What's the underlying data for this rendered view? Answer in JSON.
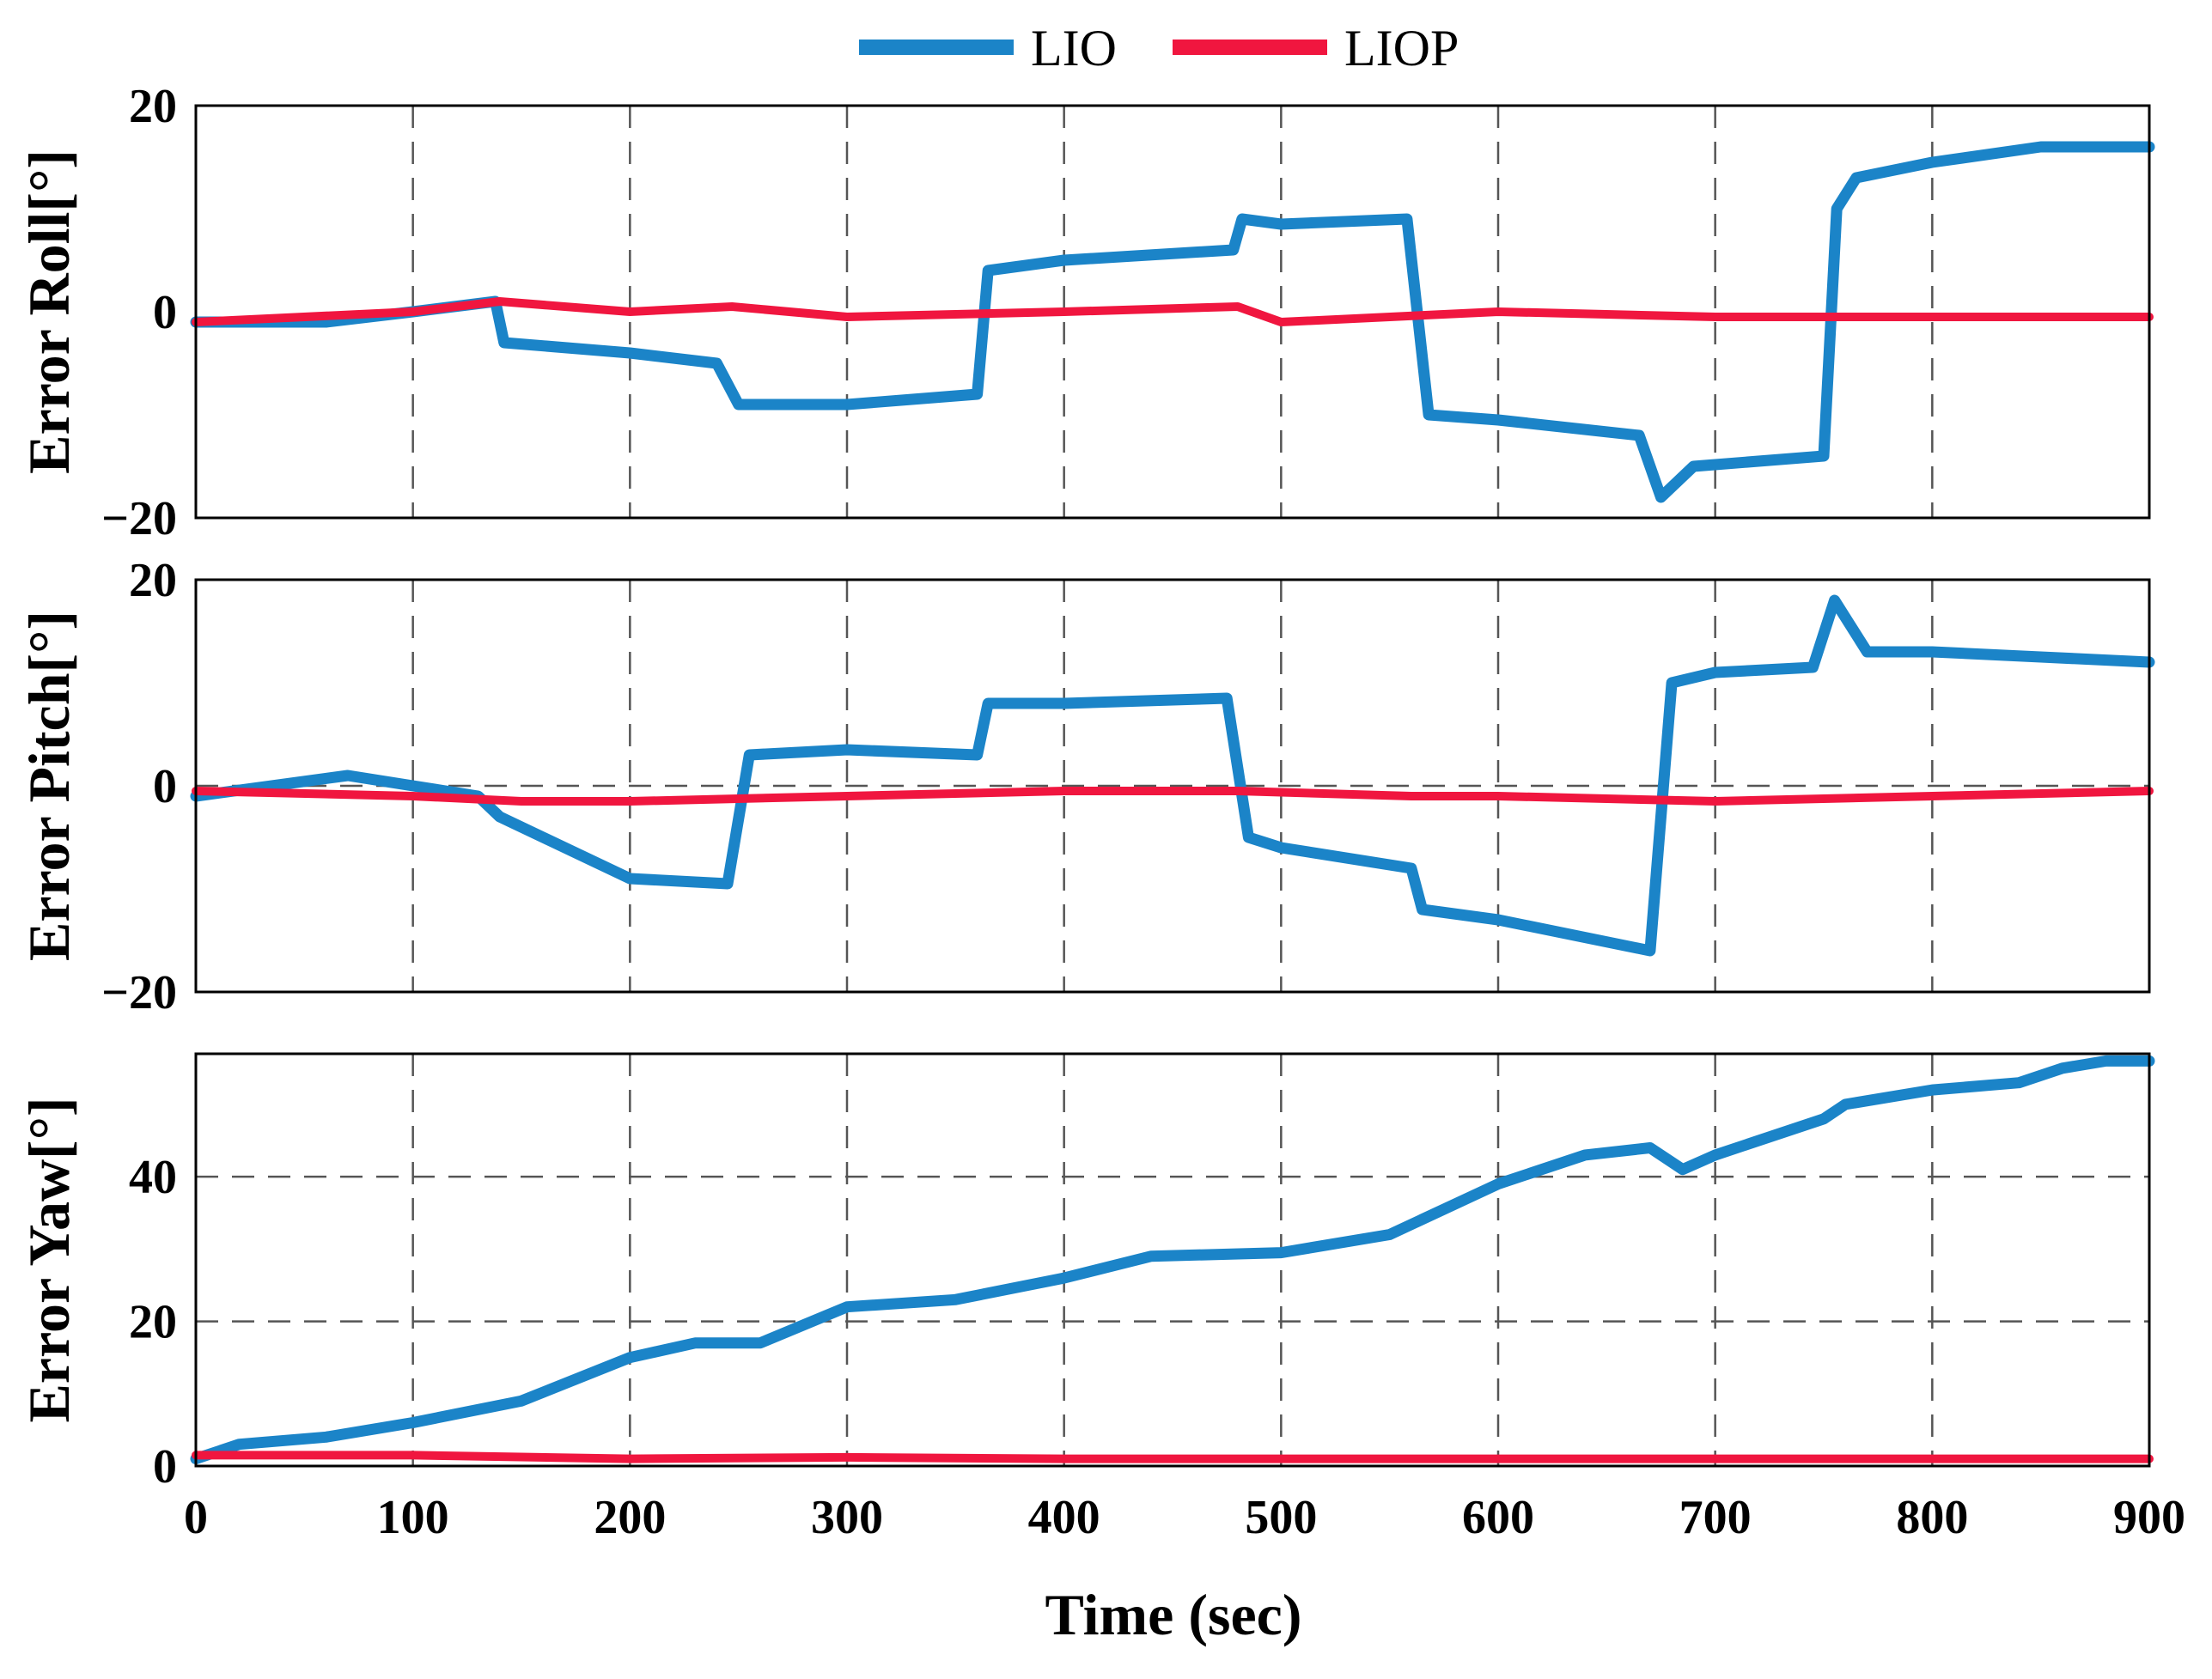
{
  "colors": {
    "LIO": "#1b84c8",
    "LIOP": "#f0163f"
  },
  "legend": {
    "position": "top-center",
    "items": [
      {
        "name": "LIO"
      },
      {
        "name": "LIOP"
      }
    ]
  },
  "chart_data": [
    {
      "type": "line",
      "ylabel": "Error Roll[°]",
      "xlabel": "",
      "xlim": [
        0,
        900
      ],
      "ylim": [
        -20,
        20
      ],
      "xticks": [
        0,
        100,
        200,
        300,
        400,
        500,
        600,
        700,
        800,
        900
      ],
      "yticks": [
        -20,
        0,
        20
      ],
      "yticklabels": [
        "−20",
        "0",
        "20"
      ],
      "grid": "vertical dashed at x ticks",
      "series": [
        {
          "name": "LIO",
          "x": [
            0,
            30,
            60,
            100,
            138,
            142,
            200,
            240,
            250,
            300,
            360,
            365,
            400,
            478,
            482,
            500,
            558,
            568,
            600,
            665,
            675,
            690,
            750,
            756,
            765,
            800,
            850,
            900
          ],
          "y": [
            -1,
            -1,
            -1,
            0,
            1,
            -3,
            -4,
            -5,
            -9,
            -9,
            -8,
            4,
            5,
            6,
            9,
            8.5,
            9,
            -10,
            -10.5,
            -12,
            -18,
            -15,
            -14,
            10,
            13,
            14.5,
            16,
            16
          ]
        },
        {
          "name": "LIOP",
          "x": [
            0,
            100,
            140,
            200,
            247,
            300,
            400,
            480,
            500,
            600,
            700,
            800,
            900
          ],
          "y": [
            -1,
            0,
            1,
            0,
            0.5,
            -0.5,
            0,
            0.5,
            -1,
            0,
            -0.5,
            -0.5,
            -0.5
          ]
        }
      ]
    },
    {
      "type": "line",
      "ylabel": "Error Pitch[°]",
      "xlabel": "",
      "xlim": [
        0,
        900
      ],
      "ylim": [
        -20,
        20
      ],
      "xticks": [
        0,
        100,
        200,
        300,
        400,
        500,
        600,
        700,
        800,
        900
      ],
      "yticks": [
        -20,
        0,
        20
      ],
      "yticklabels": [
        "−20",
        "0",
        "20"
      ],
      "grid": "vertical dashed at x ticks, horizontal dashed at 0",
      "series": [
        {
          "name": "LIO",
          "x": [
            0,
            70,
            100,
            130,
            140,
            200,
            245,
            255,
            300,
            360,
            365,
            400,
            475,
            485,
            500,
            560,
            565,
            600,
            670,
            680,
            700,
            745,
            755,
            770,
            800,
            850,
            900
          ],
          "y": [
            -1,
            1,
            0,
            -1,
            -3,
            -9,
            -9.5,
            3,
            3.5,
            3,
            8,
            8,
            8.5,
            -5,
            -6,
            -8,
            -12,
            -13,
            -16,
            10,
            11,
            11.5,
            18,
            13,
            13,
            12.5,
            12
          ]
        },
        {
          "name": "LIOP",
          "x": [
            0,
            100,
            150,
            200,
            300,
            400,
            480,
            560,
            600,
            700,
            800,
            900
          ],
          "y": [
            -0.5,
            -1,
            -1.5,
            -1.5,
            -1,
            -0.5,
            -0.5,
            -1,
            -1,
            -1.5,
            -1,
            -0.5
          ]
        }
      ]
    },
    {
      "type": "line",
      "ylabel": "Error Yaw[°]",
      "xlabel": "Time (sec)",
      "xlim": [
        0,
        900
      ],
      "ylim": [
        0,
        57
      ],
      "xticks": [
        0,
        100,
        200,
        300,
        400,
        500,
        600,
        700,
        800,
        900
      ],
      "xticklabels": [
        "0",
        "100",
        "200",
        "300",
        "400",
        "500",
        "600",
        "700",
        "800",
        "900"
      ],
      "yticks": [
        0,
        20,
        40
      ],
      "yticklabels": [
        "0",
        "20",
        "40"
      ],
      "grid": "vertical dashed at x ticks, horizontal dashed at 20 and 40",
      "series": [
        {
          "name": "LIO",
          "x": [
            0,
            20,
            60,
            100,
            150,
            200,
            230,
            260,
            300,
            350,
            400,
            440,
            500,
            550,
            600,
            640,
            670,
            685,
            700,
            750,
            760,
            800,
            840,
            860,
            880,
            900
          ],
          "y": [
            1,
            3,
            4,
            6,
            9,
            15,
            17,
            17,
            22,
            23,
            26,
            29,
            29.5,
            32,
            39,
            43,
            44,
            41,
            43,
            48,
            50,
            52,
            53,
            55,
            56,
            56
          ]
        },
        {
          "name": "LIOP",
          "x": [
            0,
            100,
            200,
            300,
            400,
            500,
            600,
            700,
            800,
            900
          ],
          "y": [
            1.5,
            1.5,
            1,
            1.2,
            1,
            1,
            1,
            1,
            1,
            1
          ]
        }
      ]
    }
  ]
}
